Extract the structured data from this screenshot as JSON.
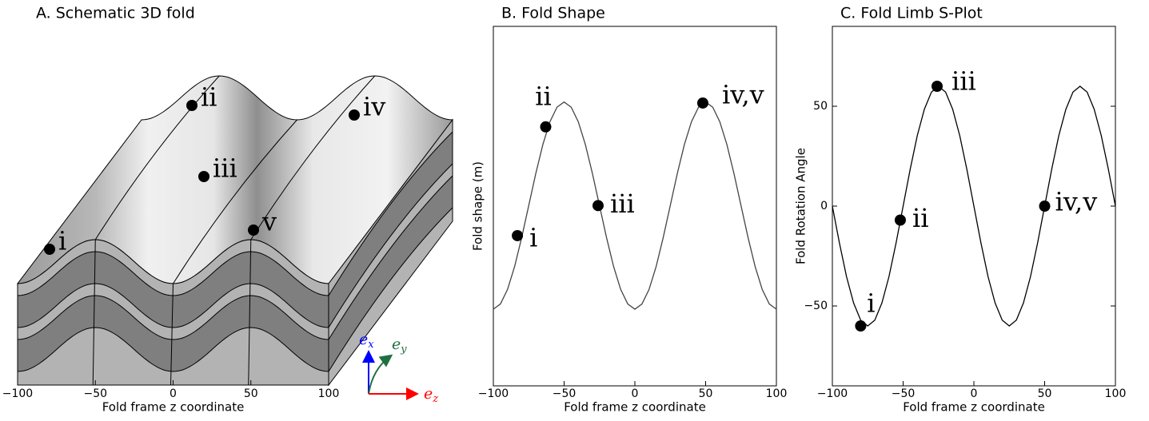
{
  "chart_data": [
    {
      "type": "schematic",
      "title": "A. Schematic 3D fold",
      "xlabel": "Fold frame z coordinate",
      "xlim": [
        -100,
        100
      ],
      "xticks": [
        {
          "value": -100,
          "label": "−100"
        },
        {
          "value": -50,
          "label": "−50"
        },
        0,
        50,
        100
      ],
      "annotations": [
        "i",
        "ii",
        "iii",
        "iv",
        "v"
      ],
      "frame_axes": [
        {
          "symbol": "e",
          "subscript": "x",
          "color": "#0000ff"
        },
        {
          "symbol": "e",
          "subscript": "y",
          "color": "#1f6f3f"
        },
        {
          "symbol": "e",
          "subscript": "z",
          "color": "#ff0000"
        }
      ]
    },
    {
      "type": "line",
      "title": "B. Fold Shape",
      "xlabel": "Fold frame z coordinate",
      "ylabel": "Fold shape (m)",
      "xlim": [
        -100,
        100
      ],
      "ylim": [
        -1.74,
        1.73
      ],
      "xticks": [
        {
          "value": -100,
          "label": "−100"
        },
        {
          "value": -50,
          "label": "−50"
        },
        0,
        50,
        100
      ],
      "x": [
        -100,
        -95,
        -90,
        -85,
        -80,
        -75,
        -70,
        -65,
        -60,
        -55,
        -50,
        -45,
        -40,
        -35,
        -30,
        -25,
        -20,
        -15,
        -10,
        -5,
        0,
        5,
        10,
        15,
        20,
        25,
        30,
        35,
        40,
        45,
        50,
        55,
        60,
        65,
        70,
        75,
        80,
        85,
        90,
        95,
        100
      ],
      "series": [
        {
          "color": "#444444",
          "values": [
            -1,
            -0.95,
            -0.81,
            -0.59,
            -0.31,
            0,
            0.31,
            0.59,
            0.81,
            0.95,
            1,
            0.95,
            0.81,
            0.59,
            0.31,
            0,
            -0.31,
            -0.59,
            -0.81,
            -0.95,
            -1,
            -0.95,
            -0.81,
            -0.59,
            -0.31,
            0,
            0.31,
            0.59,
            0.81,
            0.95,
            1,
            0.95,
            0.81,
            0.59,
            0.31,
            0,
            -0.31,
            -0.59,
            -0.81,
            -0.95,
            -1
          ]
        }
      ],
      "points": {
        "color": "#000000",
        "labels": [
          "i",
          "ii",
          "iii",
          "iv,v"
        ],
        "x": [
          -83,
          -63,
          -26,
          48
        ],
        "values": [
          -0.29,
          0.76,
          0,
          0.99
        ]
      }
    },
    {
      "type": "line",
      "title": "C. Fold Limb S-Plot",
      "xlabel": "Fold frame z coordinate",
      "ylabel": "Fold Rotation Angle",
      "xlim": [
        -100,
        100
      ],
      "ylim": [
        -90,
        90
      ],
      "xticks": [
        {
          "value": -100,
          "label": "−100"
        },
        {
          "value": -50,
          "label": "−50"
        },
        0,
        50,
        100
      ],
      "yticks": [
        {
          "value": -50,
          "label": "−50"
        },
        0,
        50
      ],
      "x": [
        -100,
        -95,
        -90,
        -85,
        -80,
        -75,
        -70,
        -65,
        -60,
        -55,
        -50,
        -45,
        -40,
        -35,
        -30,
        -25,
        -20,
        -15,
        -10,
        -5,
        0,
        5,
        10,
        15,
        20,
        25,
        30,
        35,
        40,
        45,
        50,
        55,
        60,
        65,
        70,
        75,
        80,
        85,
        90,
        95,
        100
      ],
      "series": [
        {
          "color": "#000000",
          "values": [
            0,
            -18.5,
            -35.3,
            -48.5,
            -57.1,
            -60,
            -57.1,
            -48.5,
            -35.3,
            -18.5,
            0,
            18.5,
            35.3,
            48.5,
            57.1,
            60,
            57.1,
            48.5,
            35.3,
            18.5,
            0,
            -18.5,
            -35.3,
            -48.5,
            -57.1,
            -60,
            -57.1,
            -48.5,
            -35.3,
            -18.5,
            0,
            18.5,
            35.3,
            48.5,
            57.1,
            60,
            57.1,
            48.5,
            35.3,
            18.5,
            0
          ]
        }
      ],
      "points": {
        "color": "#000000",
        "labels": [
          "i",
          "ii",
          "iii",
          "iv,v"
        ],
        "x": [
          -80,
          -52,
          -26,
          50
        ],
        "values": [
          -60,
          -7,
          60,
          0
        ]
      }
    }
  ]
}
